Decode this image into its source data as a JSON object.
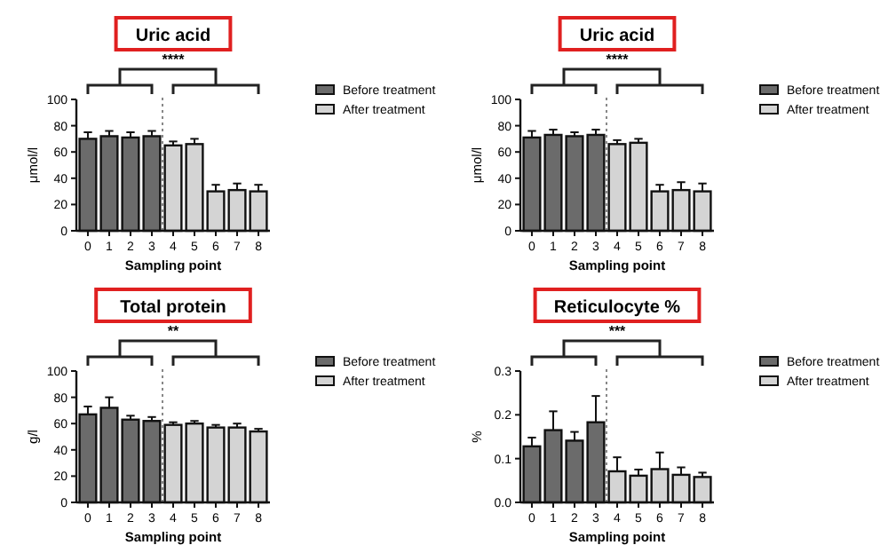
{
  "chart_data": [
    {
      "type": "bar",
      "title": "Uric acid",
      "xlabel": "Sampling point",
      "ylabel": "μmol/l",
      "categories": [
        "0",
        "1",
        "2",
        "3",
        "4",
        "5",
        "6",
        "7",
        "8"
      ],
      "ylim": [
        0,
        100
      ],
      "yticks": [
        0,
        20,
        40,
        60,
        80,
        100
      ],
      "grid": false,
      "legend": "right",
      "annotations": [
        "****"
      ],
      "series": [
        {
          "name": "Before treatment",
          "color": "#6b6b6b",
          "values": [
            70,
            72,
            71,
            72,
            null,
            null,
            null,
            null,
            null
          ],
          "errors": [
            5,
            4,
            4,
            4,
            null,
            null,
            null,
            null,
            null
          ]
        },
        {
          "name": "After treatment",
          "color": "#d4d4d4",
          "values": [
            null,
            null,
            null,
            null,
            65,
            66,
            30,
            31,
            30
          ],
          "errors": [
            null,
            null,
            null,
            null,
            3,
            4,
            5,
            5,
            5
          ]
        }
      ]
    },
    {
      "type": "bar",
      "title": "Uric acid",
      "xlabel": "Sampling point",
      "ylabel": "μmol/l",
      "categories": [
        "0",
        "1",
        "2",
        "3",
        "4",
        "5",
        "6",
        "7",
        "8"
      ],
      "ylim": [
        0,
        100
      ],
      "yticks": [
        0,
        20,
        40,
        60,
        80,
        100
      ],
      "grid": false,
      "legend": "right",
      "annotations": [
        "****"
      ],
      "series": [
        {
          "name": "Before treatment",
          "color": "#6b6b6b",
          "values": [
            71,
            73,
            72,
            73,
            null,
            null,
            null,
            null,
            null
          ],
          "errors": [
            5,
            4,
            3,
            4,
            null,
            null,
            null,
            null,
            null
          ]
        },
        {
          "name": "After treatment",
          "color": "#d4d4d4",
          "values": [
            null,
            null,
            null,
            null,
            66,
            67,
            30,
            31,
            30
          ],
          "errors": [
            null,
            null,
            null,
            null,
            3,
            3,
            5,
            6,
            6
          ]
        }
      ]
    },
    {
      "type": "bar",
      "title": "Total protein",
      "xlabel": "Sampling point",
      "ylabel": "g/l",
      "categories": [
        "0",
        "1",
        "2",
        "3",
        "4",
        "5",
        "6",
        "7",
        "8"
      ],
      "ylim": [
        0,
        100
      ],
      "yticks": [
        0,
        20,
        40,
        60,
        80,
        100
      ],
      "grid": false,
      "legend": "right",
      "annotations": [
        "**"
      ],
      "series": [
        {
          "name": "Before treatment",
          "color": "#6b6b6b",
          "values": [
            67,
            72,
            63,
            62,
            null,
            null,
            null,
            null,
            null
          ],
          "errors": [
            6,
            8,
            3,
            3,
            null,
            null,
            null,
            null,
            null
          ]
        },
        {
          "name": "After treatment",
          "color": "#d4d4d4",
          "values": [
            null,
            null,
            null,
            null,
            59,
            60,
            57,
            57,
            54
          ],
          "errors": [
            null,
            null,
            null,
            null,
            2,
            2,
            2,
            3,
            2
          ]
        }
      ]
    },
    {
      "type": "bar",
      "title": "Reticulocyte %",
      "xlabel": "Sampling point",
      "ylabel": "%",
      "categories": [
        "0",
        "1",
        "2",
        "3",
        "4",
        "5",
        "6",
        "7",
        "8"
      ],
      "ylim": [
        0,
        0.3
      ],
      "yticks": [
        {
          "value": 0,
          "label": "0.0"
        },
        0.1,
        0.2,
        0.3
      ],
      "grid": false,
      "legend": "right",
      "annotations": [
        "***"
      ],
      "series": [
        {
          "name": "Before treatment",
          "color": "#6b6b6b",
          "values": [
            0.128,
            0.165,
            0.141,
            0.183,
            null,
            null,
            null,
            null,
            null
          ],
          "errors": [
            0.02,
            0.043,
            0.02,
            0.06,
            null,
            null,
            null,
            null,
            null
          ]
        },
        {
          "name": "After treatment",
          "color": "#d4d4d4",
          "values": [
            null,
            null,
            null,
            null,
            0.071,
            0.061,
            0.076,
            0.063,
            0.058
          ],
          "errors": [
            null,
            null,
            null,
            null,
            0.032,
            0.014,
            0.038,
            0.017,
            0.01
          ]
        }
      ]
    }
  ]
}
